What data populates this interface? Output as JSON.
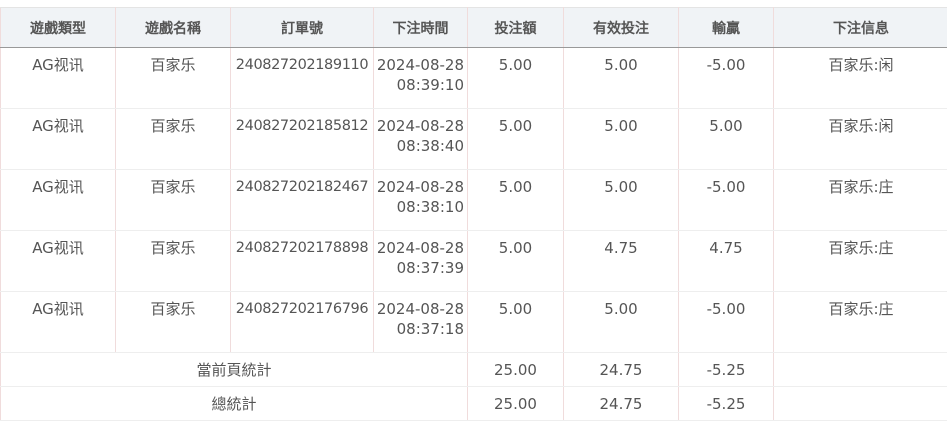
{
  "headers": [
    "遊戲類型",
    "遊戲名稱",
    "訂單號",
    "下注時間",
    "投注額",
    "有效投注",
    "輸贏",
    "下注信息"
  ],
  "rows": [
    {
      "type": "AG视讯",
      "game": "百家乐",
      "order": "240827202189110",
      "date": "2024-08-28",
      "time": "08:39:10",
      "bet": "5.00",
      "valid": "5.00",
      "win": "-5.00",
      "info": "百家乐:闲"
    },
    {
      "type": "AG视讯",
      "game": "百家乐",
      "order": "240827202185812",
      "date": "2024-08-28",
      "time": "08:38:40",
      "bet": "5.00",
      "valid": "5.00",
      "win": "5.00",
      "info": "百家乐:闲"
    },
    {
      "type": "AG视讯",
      "game": "百家乐",
      "order": "240827202182467",
      "date": "2024-08-28",
      "time": "08:38:10",
      "bet": "5.00",
      "valid": "5.00",
      "win": "-5.00",
      "info": "百家乐:庄"
    },
    {
      "type": "AG视讯",
      "game": "百家乐",
      "order": "240827202178898",
      "date": "2024-08-28",
      "time": "08:37:39",
      "bet": "5.00",
      "valid": "4.75",
      "win": "4.75",
      "info": "百家乐:庄"
    },
    {
      "type": "AG视讯",
      "game": "百家乐",
      "order": "240827202176796",
      "date": "2024-08-28",
      "time": "08:37:18",
      "bet": "5.00",
      "valid": "5.00",
      "win": "-5.00",
      "info": "百家乐:庄"
    }
  ],
  "page_total": {
    "label": "當前頁統計",
    "bet": "25.00",
    "valid": "24.75",
    "win": "-5.25"
  },
  "grand_total": {
    "label": "總統計",
    "bet": "25.00",
    "valid": "24.75",
    "win": "-5.25"
  }
}
